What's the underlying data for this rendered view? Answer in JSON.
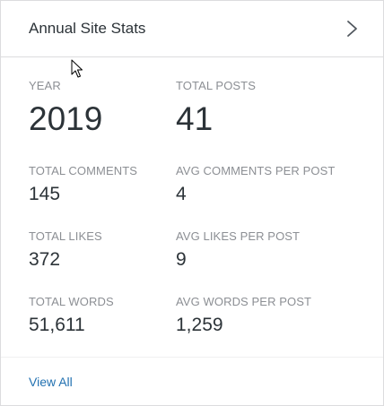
{
  "header": {
    "title": "Annual Site Stats",
    "chevron_icon": "chevron-right-icon"
  },
  "stats": {
    "year": {
      "label": "YEAR",
      "value": "2019"
    },
    "total_posts": {
      "label": "TOTAL POSTS",
      "value": "41"
    },
    "total_comments": {
      "label": "TOTAL COMMENTS",
      "value": "145"
    },
    "avg_comments": {
      "label": "AVG COMMENTS PER POST",
      "value": "4"
    },
    "total_likes": {
      "label": "TOTAL LIKES",
      "value": "372"
    },
    "avg_likes": {
      "label": "AVG LIKES PER POST",
      "value": "9"
    },
    "total_words": {
      "label": "TOTAL WORDS",
      "value": "51,611"
    },
    "avg_words": {
      "label": "AVG WORDS PER POST",
      "value": "1,259"
    }
  },
  "footer": {
    "view_all_label": "View All"
  },
  "colors": {
    "text": "#2c3338",
    "label": "#8c8f94",
    "link": "#2271b1",
    "border": "#dcdcde"
  }
}
